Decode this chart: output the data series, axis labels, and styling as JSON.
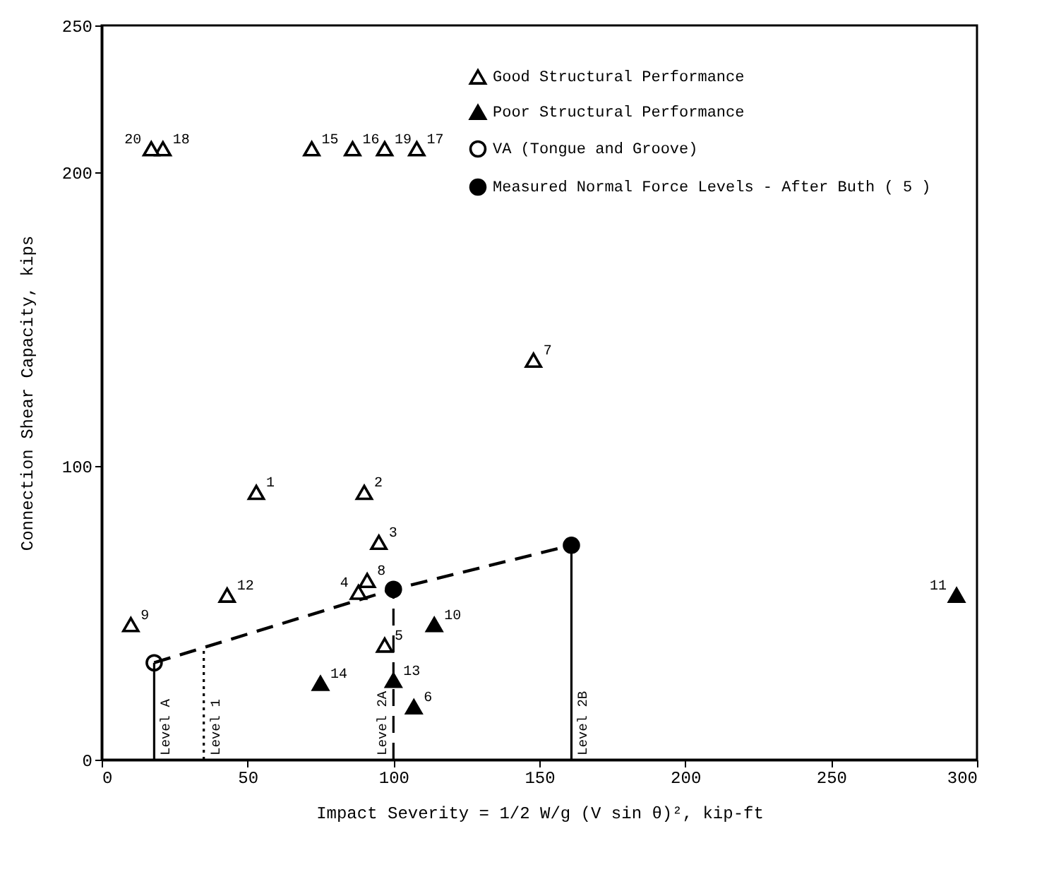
{
  "chart_data": {
    "type": "scatter",
    "xlabel": "Impact Severity  =  1/2 W/g (V sin θ)², kip-ft",
    "ylabel": "Connection Shear Capacity, kips",
    "xlim": [
      0,
      300
    ],
    "xticks": [
      0,
      50,
      100,
      150,
      200,
      250,
      300
    ],
    "ylim": [
      0,
      250
    ],
    "yticks": [
      0,
      100,
      200,
      250
    ],
    "grid": false,
    "legend": "top right",
    "series": [
      {
        "name": "Good Structural Performance",
        "color": "#ffffff",
        "marker": "triangle",
        "x": [
          53,
          90,
          95,
          88,
          97,
          148,
          91,
          10,
          43,
          72,
          86,
          108,
          21,
          97,
          17
        ],
        "values": [
          91,
          91,
          74,
          57,
          39,
          136,
          61,
          46,
          56,
          208,
          208,
          208,
          208,
          208,
          208
        ]
      },
      {
        "name": "Poor Structural Performance",
        "color": "#000000",
        "marker": "triangle",
        "x": [
          107,
          114,
          293,
          100,
          75
        ],
        "values": [
          18,
          46,
          56,
          27,
          26
        ]
      },
      {
        "name": "VA (Tongue and Groove)",
        "color": "#ffffff",
        "marker": "circle",
        "x": [
          18
        ],
        "values": [
          33
        ]
      },
      {
        "name": "Measured Normal Force Levels - After Buth ( 5 )",
        "color": "#000000",
        "marker": "circle",
        "x": [
          100,
          161
        ],
        "values": [
          58,
          73
        ]
      },
      {
        "type": "line",
        "color": "#000000",
        "line_style": "dashed",
        "x": [
          18,
          100,
          161
        ],
        "values": [
          33,
          58,
          73
        ]
      }
    ],
    "ref_lines": [
      {
        "axis": "x",
        "value": 18,
        "label": "Level A",
        "line_style": "solid"
      },
      {
        "axis": "x",
        "value": 35,
        "label": "Level 1",
        "line_style": "dotted"
      },
      {
        "axis": "x",
        "value": 100,
        "label": "Level 2A",
        "line_style": "dashed"
      },
      {
        "axis": "x",
        "value": 161,
        "label": "Level 2B",
        "line_style": "solid"
      }
    ],
    "annotations": [
      {
        "text": "1",
        "x": 53,
        "y": 91
      },
      {
        "text": "2",
        "x": 90,
        "y": 91
      },
      {
        "text": "3",
        "x": 95,
        "y": 74
      },
      {
        "text": "4",
        "x": 88,
        "y": 57
      },
      {
        "text": "5",
        "x": 97,
        "y": 39
      },
      {
        "text": "6",
        "x": 107,
        "y": 18
      },
      {
        "text": "7",
        "x": 148,
        "y": 136
      },
      {
        "text": "8",
        "x": 91,
        "y": 61
      },
      {
        "text": "9",
        "x": 10,
        "y": 46
      },
      {
        "text": "10",
        "x": 114,
        "y": 46
      },
      {
        "text": "11",
        "x": 293,
        "y": 56
      },
      {
        "text": "12",
        "x": 43,
        "y": 56
      },
      {
        "text": "13",
        "x": 100,
        "y": 27
      },
      {
        "text": "14",
        "x": 75,
        "y": 26
      },
      {
        "text": "15",
        "x": 72,
        "y": 208
      },
      {
        "text": "16",
        "x": 86,
        "y": 208
      },
      {
        "text": "17",
        "x": 108,
        "y": 208
      },
      {
        "text": "18",
        "x": 21,
        "y": 208
      },
      {
        "text": "19",
        "x": 97,
        "y": 208
      },
      {
        "text": "20",
        "x": 17,
        "y": 208
      }
    ]
  }
}
